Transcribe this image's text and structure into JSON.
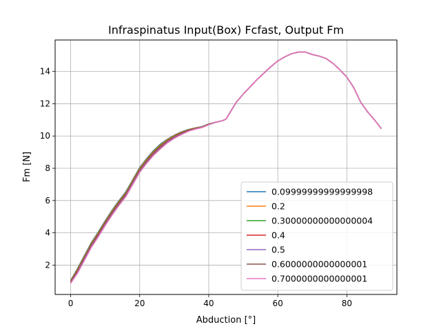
{
  "chart_data": {
    "type": "line",
    "title": "Infraspinatus Input(Box) Fcfast, Output Fm",
    "xlabel": "Abduction [°]",
    "ylabel": "Fm [N]",
    "xlim": [
      -4.5,
      94.5
    ],
    "ylim": [
      0.18,
      15.95
    ],
    "xticks": [
      0,
      20,
      40,
      60,
      80
    ],
    "yticks": [
      2,
      4,
      6,
      8,
      10,
      12,
      14
    ],
    "grid": true,
    "legend_position": "lower-right",
    "x": [
      0,
      2,
      4,
      6,
      8,
      10,
      12,
      14,
      16,
      18,
      20,
      22,
      24,
      26,
      28,
      30,
      32,
      34,
      36,
      38,
      40,
      42,
      44,
      45,
      48,
      50,
      54,
      58,
      60,
      62,
      64,
      66,
      68,
      70,
      72,
      74,
      76,
      78,
      80,
      82,
      84,
      86,
      88,
      90
    ],
    "series": [
      {
        "name": "0.09999999999999998",
        "color": "#1f77b4",
        "values": [
          1.05,
          1.8,
          2.6,
          3.4,
          4.05,
          4.75,
          5.4,
          6.0,
          6.55,
          7.3,
          8.05,
          8.6,
          9.1,
          9.5,
          9.8,
          10.05,
          10.25,
          10.4,
          10.5,
          10.58,
          10.75,
          10.85,
          10.95,
          11.05,
          12.1,
          12.6,
          13.5,
          14.3,
          14.65,
          14.9,
          15.1,
          15.2,
          15.2,
          15.05,
          14.95,
          14.8,
          14.5,
          14.1,
          13.65,
          13.0,
          12.1,
          11.5,
          11.0,
          10.45
        ]
      },
      {
        "name": "0.2",
        "color": "#ff7f0e",
        "values": [
          1.02,
          1.75,
          2.55,
          3.35,
          4.0,
          4.7,
          5.35,
          5.95,
          6.5,
          7.25,
          8.0,
          8.55,
          9.05,
          9.45,
          9.77,
          10.02,
          10.23,
          10.38,
          10.49,
          10.57,
          10.74,
          10.85,
          10.95,
          11.05,
          12.1,
          12.6,
          13.5,
          14.3,
          14.65,
          14.9,
          15.1,
          15.2,
          15.2,
          15.05,
          14.95,
          14.8,
          14.5,
          14.1,
          13.65,
          13.0,
          12.1,
          11.5,
          11.0,
          10.45
        ]
      },
      {
        "name": "0.30000000000000004",
        "color": "#2ca02c",
        "values": [
          0.99,
          1.7,
          2.5,
          3.3,
          3.95,
          4.65,
          5.3,
          5.9,
          6.45,
          7.2,
          7.95,
          8.5,
          9.0,
          9.4,
          9.73,
          9.98,
          10.2,
          10.36,
          10.47,
          10.56,
          10.73,
          10.85,
          10.95,
          11.05,
          12.1,
          12.6,
          13.5,
          14.3,
          14.65,
          14.9,
          15.1,
          15.2,
          15.2,
          15.05,
          14.95,
          14.8,
          14.5,
          14.1,
          13.65,
          13.0,
          12.1,
          11.5,
          11.0,
          10.45
        ]
      },
      {
        "name": "0.4",
        "color": "#d62728",
        "values": [
          0.96,
          1.65,
          2.45,
          3.25,
          3.9,
          4.6,
          5.25,
          5.85,
          6.4,
          7.15,
          7.9,
          8.45,
          8.95,
          9.35,
          9.69,
          9.95,
          10.17,
          10.34,
          10.46,
          10.55,
          10.72,
          10.85,
          10.95,
          11.05,
          12.1,
          12.6,
          13.5,
          14.3,
          14.65,
          14.9,
          15.1,
          15.2,
          15.2,
          15.05,
          14.95,
          14.8,
          14.5,
          14.1,
          13.65,
          13.0,
          12.1,
          11.5,
          11.0,
          10.45
        ]
      },
      {
        "name": "0.5",
        "color": "#9467bd",
        "values": [
          0.93,
          1.6,
          2.4,
          3.2,
          3.85,
          4.55,
          5.2,
          5.8,
          6.35,
          7.1,
          7.85,
          8.4,
          8.9,
          9.3,
          9.65,
          9.92,
          10.14,
          10.32,
          10.44,
          10.54,
          10.71,
          10.85,
          10.95,
          11.05,
          12.1,
          12.6,
          13.5,
          14.3,
          14.65,
          14.9,
          15.1,
          15.2,
          15.2,
          15.05,
          14.95,
          14.8,
          14.5,
          14.1,
          13.65,
          13.0,
          12.1,
          11.5,
          11.0,
          10.45
        ]
      },
      {
        "name": "0.6000000000000001",
        "color": "#8c564b",
        "values": [
          0.9,
          1.55,
          2.35,
          3.15,
          3.8,
          4.5,
          5.15,
          5.75,
          6.3,
          7.05,
          7.8,
          8.35,
          8.85,
          9.25,
          9.61,
          9.88,
          10.11,
          10.3,
          10.43,
          10.53,
          10.7,
          10.85,
          10.95,
          11.05,
          12.1,
          12.6,
          13.5,
          14.3,
          14.65,
          14.9,
          15.1,
          15.2,
          15.2,
          15.05,
          14.95,
          14.8,
          14.5,
          14.1,
          13.65,
          13.0,
          12.1,
          11.5,
          11.0,
          10.45
        ]
      },
      {
        "name": "0.7000000000000001",
        "color": "#e377c2",
        "values": [
          0.87,
          1.5,
          2.3,
          3.1,
          3.75,
          4.45,
          5.1,
          5.7,
          6.25,
          7.0,
          7.75,
          8.3,
          8.8,
          9.2,
          9.57,
          9.85,
          10.08,
          10.28,
          10.42,
          10.52,
          10.7,
          10.85,
          10.95,
          11.05,
          12.1,
          12.6,
          13.5,
          14.3,
          14.65,
          14.9,
          15.1,
          15.2,
          15.2,
          15.05,
          14.95,
          14.8,
          14.5,
          14.1,
          13.65,
          13.0,
          12.1,
          11.5,
          11.0,
          10.45
        ]
      }
    ]
  }
}
